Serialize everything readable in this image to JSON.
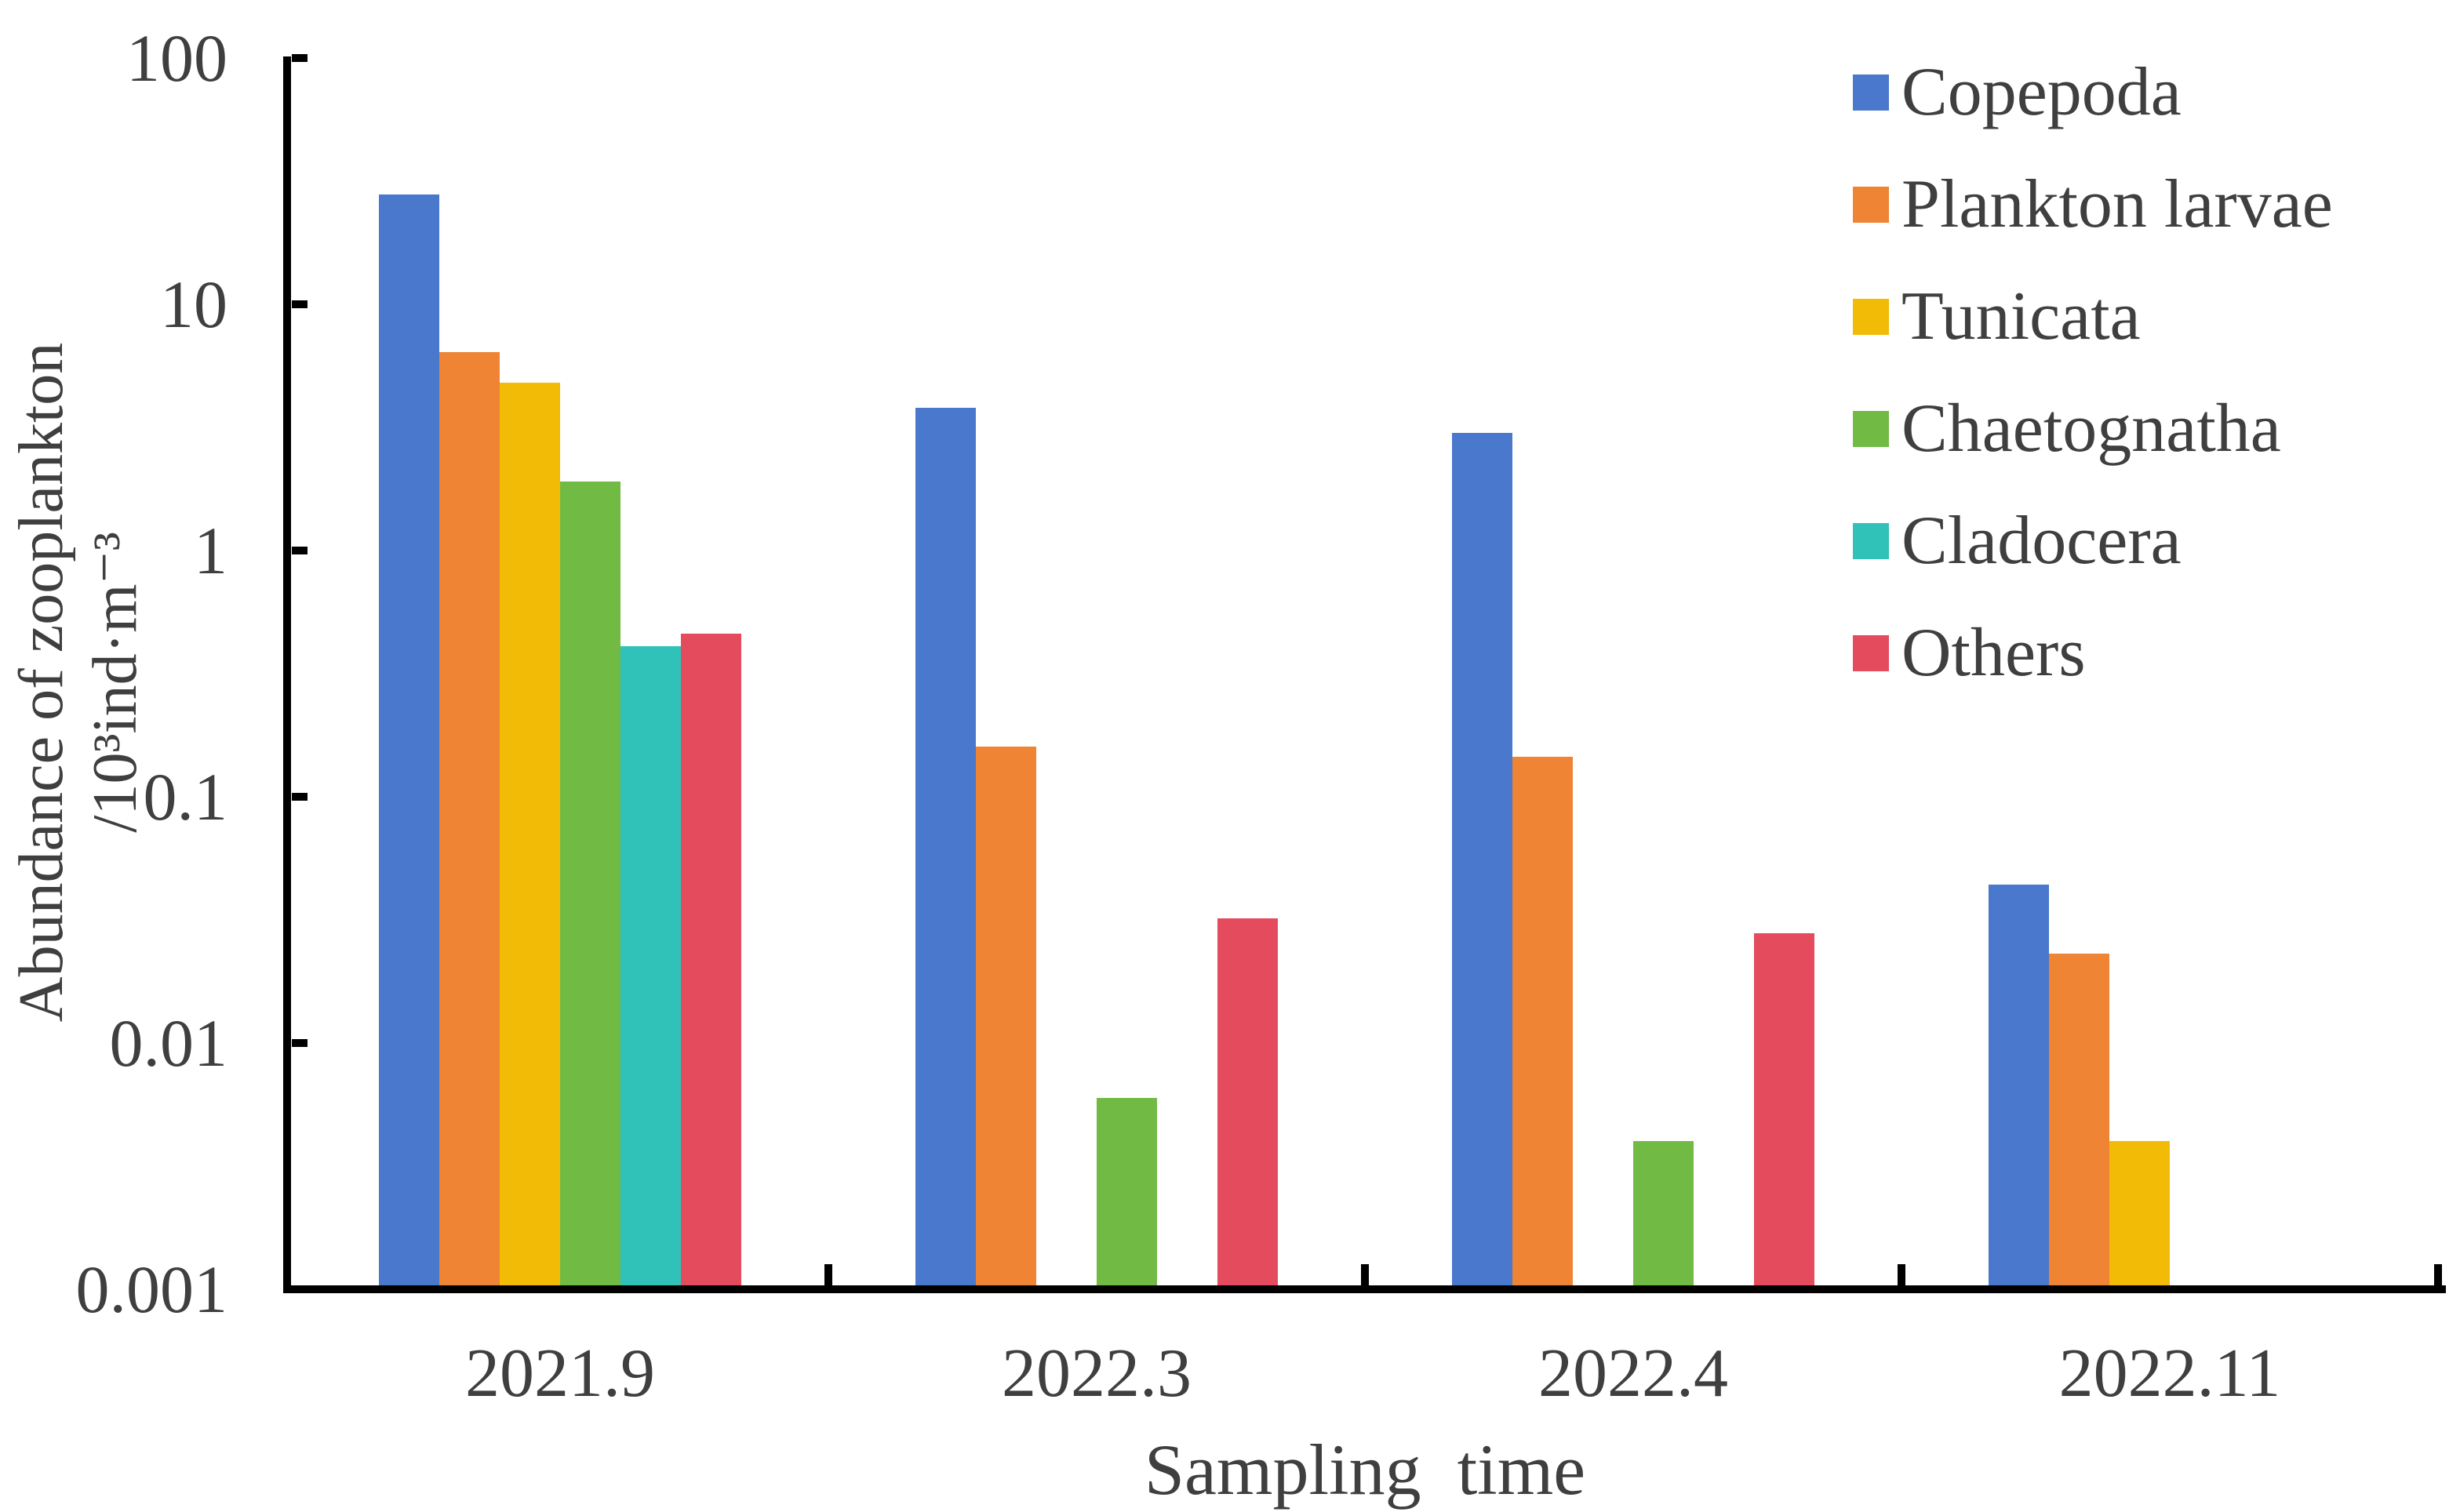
{
  "chart_data": {
    "type": "bar",
    "title": "",
    "categories": [
      "2021.9",
      "2022.3",
      "2022.4",
      "2022.11"
    ],
    "series": [
      {
        "name": "Copepoda",
        "color": "#4A78CC",
        "values": [
          28,
          3.8,
          3.0,
          0.044
        ]
      },
      {
        "name": "Plankton larvae",
        "color": "#EE8434",
        "values": [
          6.4,
          0.16,
          0.145,
          0.023
        ]
      },
      {
        "name": "Tunicata",
        "color": "#F2BB05",
        "values": [
          4.8,
          null,
          null,
          0.004
        ]
      },
      {
        "name": "Chaetognatha",
        "color": "#71BB44",
        "values": [
          1.9,
          0.006,
          0.004,
          null
        ]
      },
      {
        "name": "Cladocera",
        "color": "#30C1B8",
        "values": [
          0.41,
          null,
          null,
          null
        ]
      },
      {
        "name": "Others",
        "color": "#E44C5E",
        "values": [
          0.46,
          0.032,
          0.028,
          null
        ]
      }
    ],
    "xlabel": "Sampling  time",
    "ylabel_line1": "Abundance of zooplankton",
    "ylabel_line2": "/10³ind·m⁻³",
    "y_ticks": [
      "100",
      "10",
      "1",
      "0.1",
      "0.01",
      "0.001"
    ],
    "y_scale": "log",
    "ylim": [
      0.001,
      100
    ],
    "grid": false,
    "legend_position": "top-right"
  },
  "styles": {
    "axis_color": "#000000",
    "text_color": "#3F3F3F",
    "background": "#FFFFFF"
  }
}
